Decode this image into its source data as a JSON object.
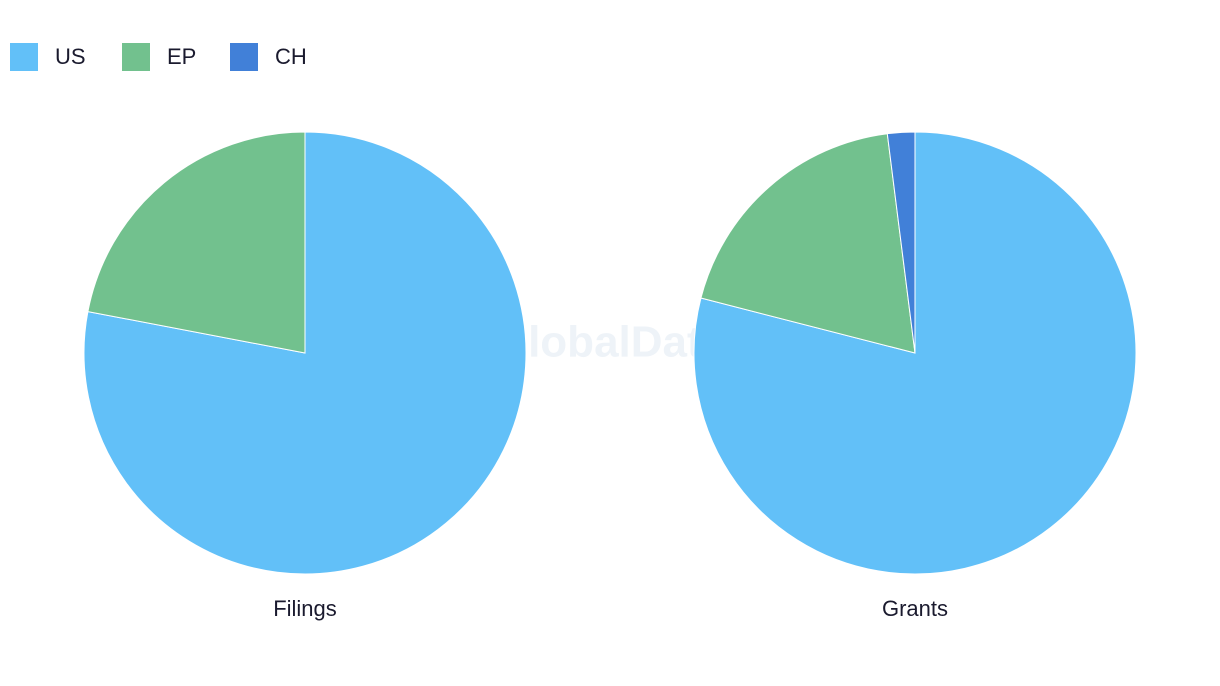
{
  "watermark": "GlobalData",
  "chart_data": [
    {
      "type": "pie",
      "title": "Filings",
      "categories": [
        "US",
        "EP"
      ],
      "values": [
        78,
        22
      ],
      "colors": [
        "#62c0f8",
        "#72c18e"
      ]
    },
    {
      "type": "pie",
      "title": "Grants",
      "categories": [
        "US",
        "EP",
        "CH"
      ],
      "values": [
        79,
        19,
        2
      ],
      "colors": [
        "#62c0f8",
        "#72c18e",
        "#4180d8"
      ]
    }
  ]
}
